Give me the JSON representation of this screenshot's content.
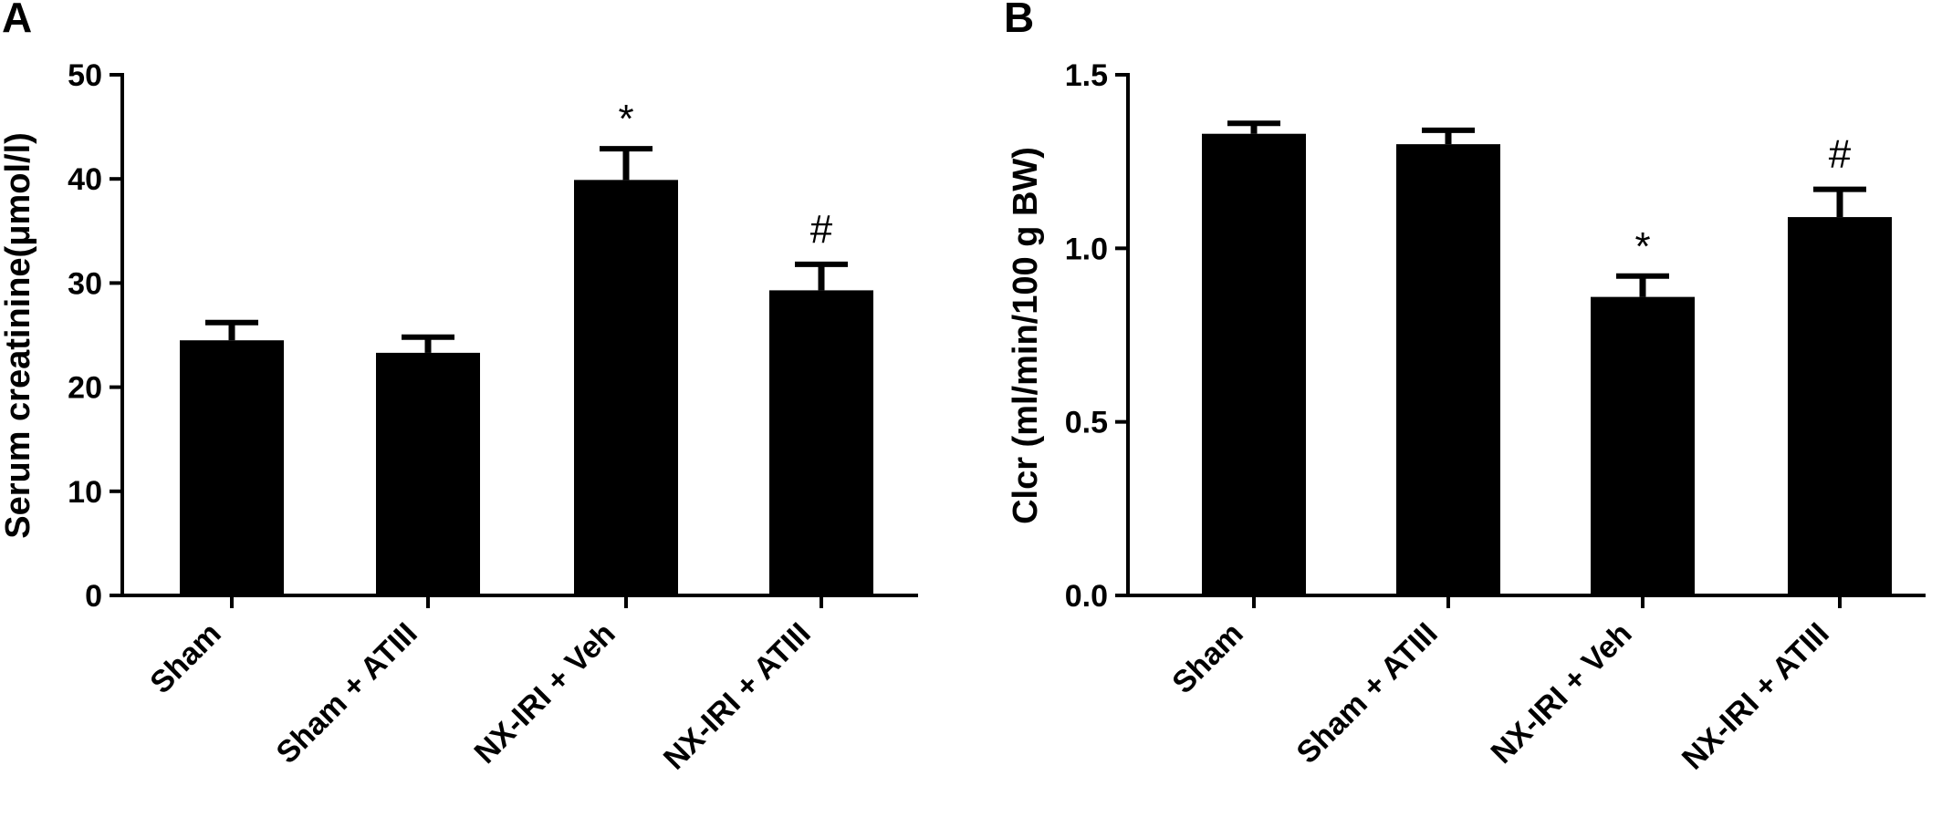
{
  "chart_data": [
    {
      "type": "bar",
      "panel_label": "A",
      "ylabel": "Serum creatinine(μmol/l)",
      "ylim": [
        0,
        50
      ],
      "yticks": [
        0,
        10,
        20,
        30,
        40,
        50
      ],
      "ytick_labels": [
        "0",
        "10",
        "20",
        "30",
        "40",
        "50"
      ],
      "categories": [
        "Sham",
        "Sham + ATIII",
        "NX-IRI + Veh",
        "NX-IRI + ATIII"
      ],
      "values": [
        24.5,
        23.3,
        39.9,
        29.3
      ],
      "errors": [
        1.7,
        1.5,
        3.0,
        2.5
      ],
      "annotations": [
        "",
        "",
        "*",
        "#"
      ],
      "grid": false,
      "color": "#000000"
    },
    {
      "type": "bar",
      "panel_label": "B",
      "ylabel": "Clcr (ml/min/100 g BW)",
      "ylim": [
        0,
        1.5
      ],
      "yticks": [
        0,
        0.5,
        1.0,
        1.5
      ],
      "ytick_labels": [
        "0.0",
        "0.5",
        "1.0",
        "1.5"
      ],
      "categories": [
        "Sham",
        "Sham + ATIII",
        "NX-IRI + Veh",
        "NX-IRI + ATIII"
      ],
      "values": [
        1.33,
        1.3,
        0.86,
        1.09
      ],
      "errors": [
        0.03,
        0.04,
        0.06,
        0.08
      ],
      "annotations": [
        "",
        "",
        "*",
        "#"
      ],
      "grid": false,
      "color": "#000000"
    }
  ]
}
